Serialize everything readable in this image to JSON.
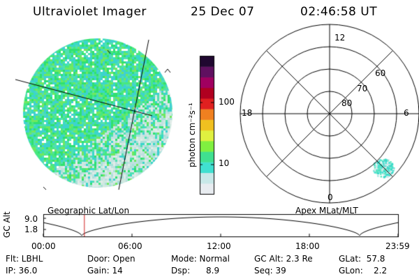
{
  "header": {
    "title": "Ultraviolet Imager",
    "date": "25 Dec 07",
    "time": "02:46:58 UT"
  },
  "colors": {
    "low": "#d8e4e0",
    "mid": "#38d8c8",
    "green": "#40e070",
    "line": "#000000",
    "marker": "#d02020"
  },
  "colorbar": {
    "label": "photon cm⁻²s⁻¹",
    "ticks": [
      "100",
      "10"
    ],
    "scale": "log",
    "colors": [
      "#e8ecf0",
      "#c8e8e8",
      "#40e0d0",
      "#40e090",
      "#80f040",
      "#e0f040",
      "#f0c020",
      "#f08020",
      "#e02020",
      "#b00020",
      "#a00060",
      "#601060",
      "#200830"
    ]
  },
  "left_panel": {
    "caption": "Geographic Lat/Lon"
  },
  "right_panel": {
    "caption": "Apex MLat/MLT",
    "mlt_labels": [
      "12",
      "18",
      "6",
      "0"
    ],
    "lat_labels": [
      "60",
      "70",
      "80"
    ]
  },
  "gc_plot": {
    "ylabel": "GC Alt",
    "y_ticks": [
      "9.0",
      "1.8"
    ],
    "x_ticks": [
      "00:00",
      "06:00",
      "12:00",
      "18:00",
      "23:59"
    ],
    "current_time_hours": 2.78
  },
  "footer": {
    "row1": {
      "filter": "Flt: LBHL",
      "door": "Door: Open",
      "mode": "Mode: Normal",
      "gc_alt": "GC Alt: 2.3 Re",
      "glat": "GLat:  57.8"
    },
    "row2": {
      "ip": "IP: 36.0",
      "gain": "Gain: 14",
      "dsp": "Dsp:      8.9",
      "seq": "Seq: 39",
      "glon": "GLon:    2.2"
    }
  }
}
